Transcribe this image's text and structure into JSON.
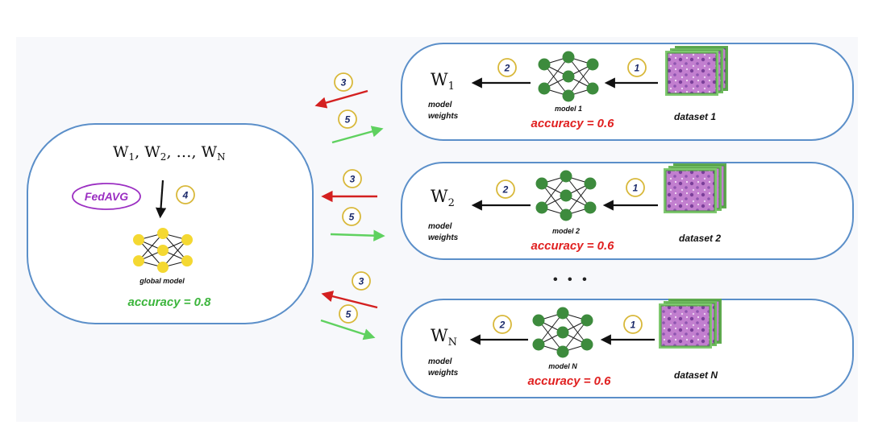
{
  "server": {
    "weights": "W",
    "weights_subs": [
      "1",
      "2",
      "N"
    ],
    "ellipsis": "…",
    "fedavg": "FedAVG",
    "step": "4",
    "model_label": "global model",
    "accuracy": "accuracy = 0.8"
  },
  "clients": [
    {
      "weight_symbol": "W",
      "weight_sub": "1",
      "weights_label": [
        "model",
        "weights"
      ],
      "model_label": "model 1",
      "accuracy": "accuracy = 0.6",
      "dataset": "dataset 1"
    },
    {
      "weight_symbol": "W",
      "weight_sub": "2",
      "weights_label": [
        "model",
        "weights"
      ],
      "model_label": "model 2",
      "accuracy": "accuracy = 0.6",
      "dataset": "dataset 2"
    },
    {
      "weight_symbol": "W",
      "weight_sub": "N",
      "weights_label": [
        "model",
        "weights"
      ],
      "model_label": "model N",
      "accuracy": "accuracy = 0.6",
      "dataset": "dataset N"
    }
  ],
  "steps": {
    "dataset_to_model": "1",
    "model_to_weights": "2",
    "upload": "3",
    "download": "5"
  },
  "more_clients": "• • •",
  "colors": {
    "panel_border": "#5b8fc9",
    "client_node": "#3d8b3d",
    "global_node": "#f4d832",
    "upload_arrow": "#d42020",
    "download_arrow": "#5fd15f",
    "step_ring": "#d8b83a",
    "fedavg": "#9b2fc2"
  }
}
